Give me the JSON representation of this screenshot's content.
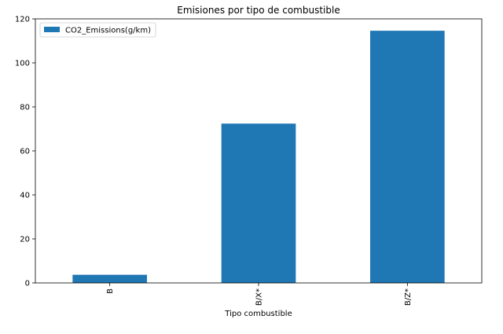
{
  "chart_data": {
    "type": "bar",
    "title": "Emisiones por tipo de combustible",
    "xlabel": "Tipo combustible",
    "ylabel": "",
    "categories": [
      "B",
      "B/X*",
      "B/Z*"
    ],
    "series": [
      {
        "name": "CO2_Emissions(g/km)",
        "values": [
          3.7,
          72.4,
          114.6
        ],
        "color": "#1f77b4"
      }
    ],
    "ylim": [
      0,
      120
    ],
    "yticks": [
      0,
      20,
      40,
      60,
      80,
      100,
      120
    ],
    "legend": "top-left",
    "grid": false,
    "xtick_rotation": 90
  }
}
